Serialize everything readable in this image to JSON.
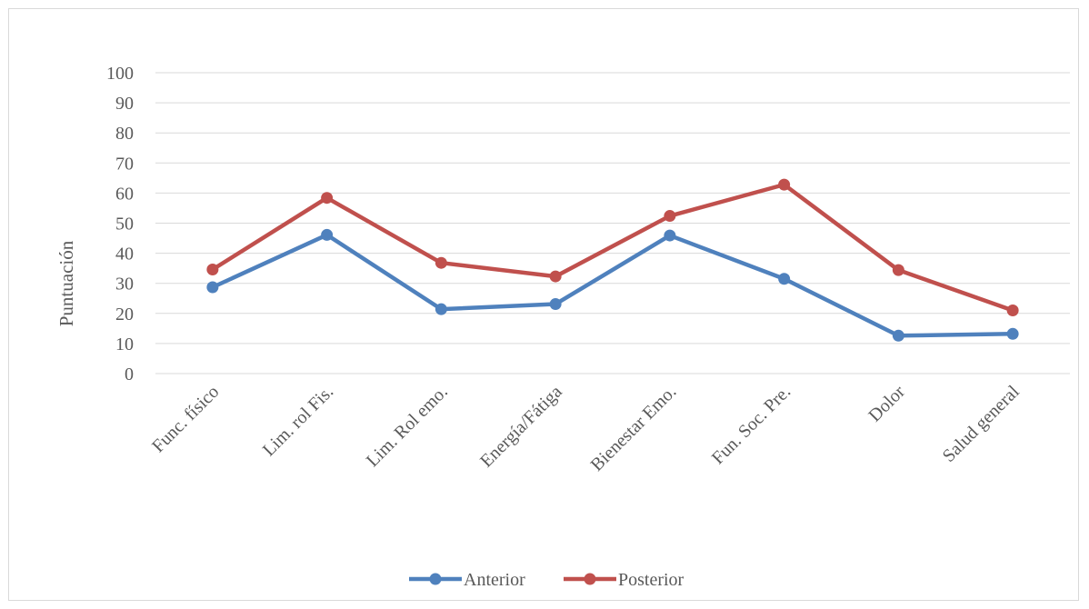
{
  "chart_data": {
    "type": "line",
    "title": "",
    "xlabel": "",
    "ylabel": "Puntuación",
    "ylim": [
      0,
      100
    ],
    "yticks": [
      0,
      10,
      20,
      30,
      40,
      50,
      60,
      70,
      80,
      90,
      100
    ],
    "grid": true,
    "legend_position": "bottom",
    "categories": [
      "Func. físico",
      "Lim. rol Fis.",
      "Lim. Rol emo.",
      "Energía/Fátiga",
      "Bienestar Emo.",
      "Fun. Soc. Pre.",
      "Dolor",
      "Salud general"
    ],
    "series": [
      {
        "name": "Anterior",
        "color": "#4f81bd",
        "values": [
          28.7,
          46.1,
          21.4,
          23.1,
          45.9,
          31.5,
          12.6,
          13.2
        ]
      },
      {
        "name": "Posterior",
        "color": "#c0504d",
        "values": [
          34.6,
          58.4,
          36.8,
          32.3,
          52.4,
          62.8,
          34.4,
          21.0
        ]
      }
    ]
  }
}
